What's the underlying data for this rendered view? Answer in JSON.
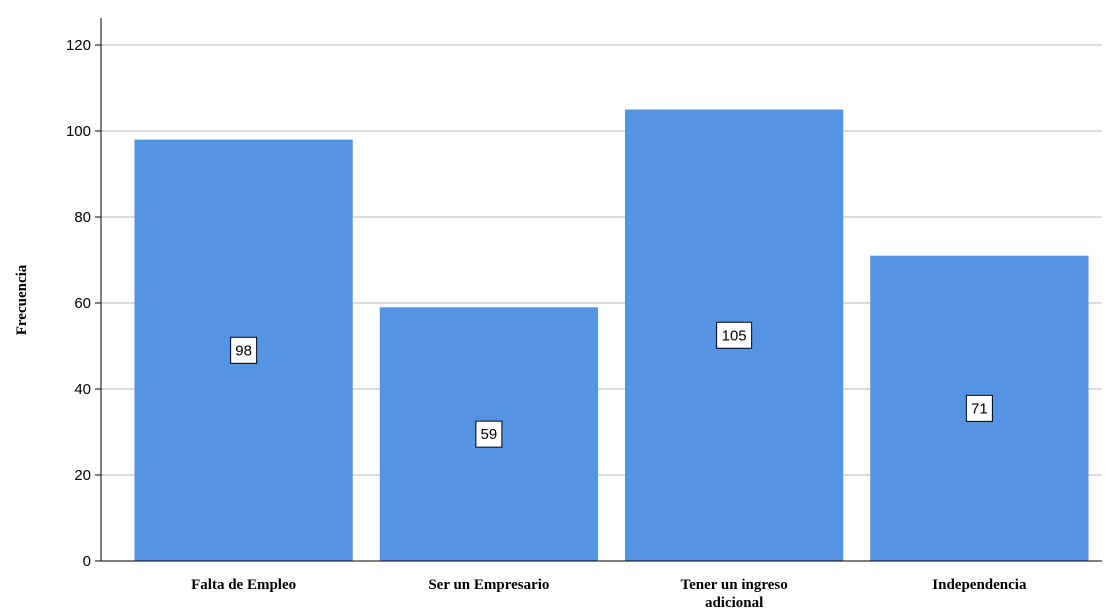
{
  "chart_data": {
    "type": "bar",
    "categories": [
      [
        "Falta de Empleo"
      ],
      [
        "Ser un Empresario"
      ],
      [
        "Tener un ingreso",
        "adicional"
      ],
      [
        "Independencia"
      ]
    ],
    "values": [
      98,
      59,
      105,
      71
    ],
    "ylabel": "Frecuencia",
    "ylim": [
      0,
      120
    ],
    "yticks": [
      0,
      20,
      40,
      60,
      80,
      100,
      120
    ],
    "grid": true,
    "bar_color": "#5594e3",
    "data_labels": true
  }
}
